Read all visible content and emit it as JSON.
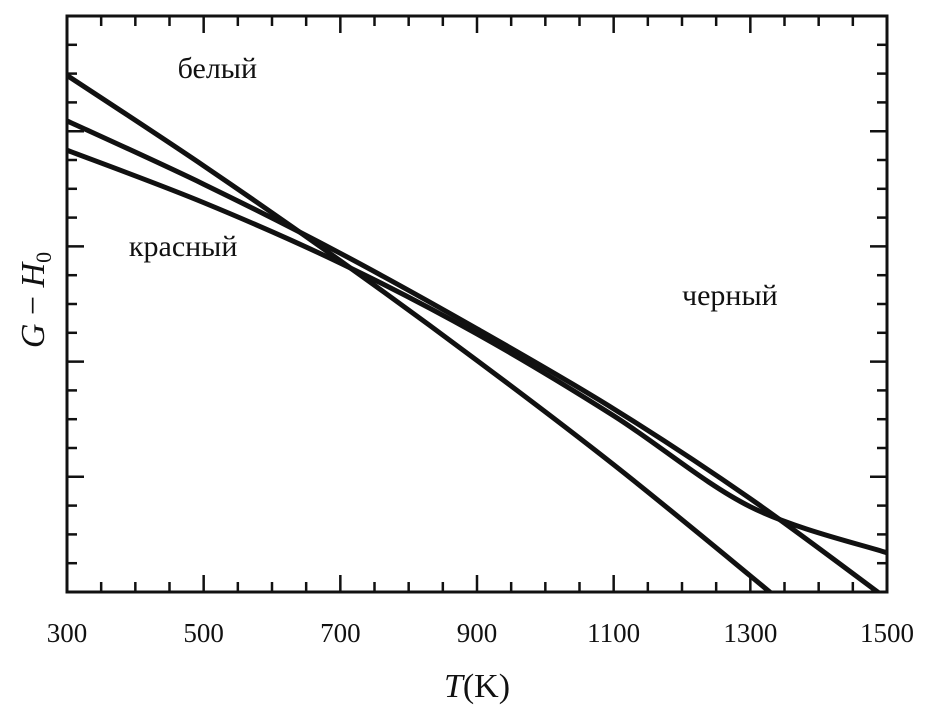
{
  "chart_data": {
    "type": "line",
    "xlabel_var": "T",
    "xlabel_unit": "(K)",
    "ylabel_var1": "G",
    "ylabel_op": " − ",
    "ylabel_var2": "H",
    "ylabel_sub": "0",
    "xlim": [
      300,
      1500
    ],
    "ylim": [
      0,
      1
    ],
    "x_ticks": [
      300,
      500,
      700,
      900,
      1100,
      1300,
      1500
    ],
    "y_tick_labels": false,
    "grid": false,
    "x": [
      300,
      500,
      700,
      900,
      1100,
      1300,
      1500
    ],
    "series": [
      {
        "name": "белый",
        "values": [
          0.897,
          0.74,
          0.575,
          0.402,
          0.221,
          0.028,
          -0.17
        ]
      },
      {
        "name": "черный",
        "values": [
          0.818,
          0.708,
          0.588,
          0.457,
          0.318,
          0.162,
          -0.012
        ]
      },
      {
        "name": "красный",
        "values": [
          0.767,
          0.676,
          0.571,
          0.448,
          0.306,
          0.148,
          0.068
        ]
      }
    ],
    "annotations": [
      {
        "text": "белый",
        "x": 520,
        "y": 0.892
      },
      {
        "text": "красный",
        "x": 470,
        "y": 0.583
      },
      {
        "text": "черный",
        "x": 1270,
        "y": 0.498
      }
    ]
  }
}
